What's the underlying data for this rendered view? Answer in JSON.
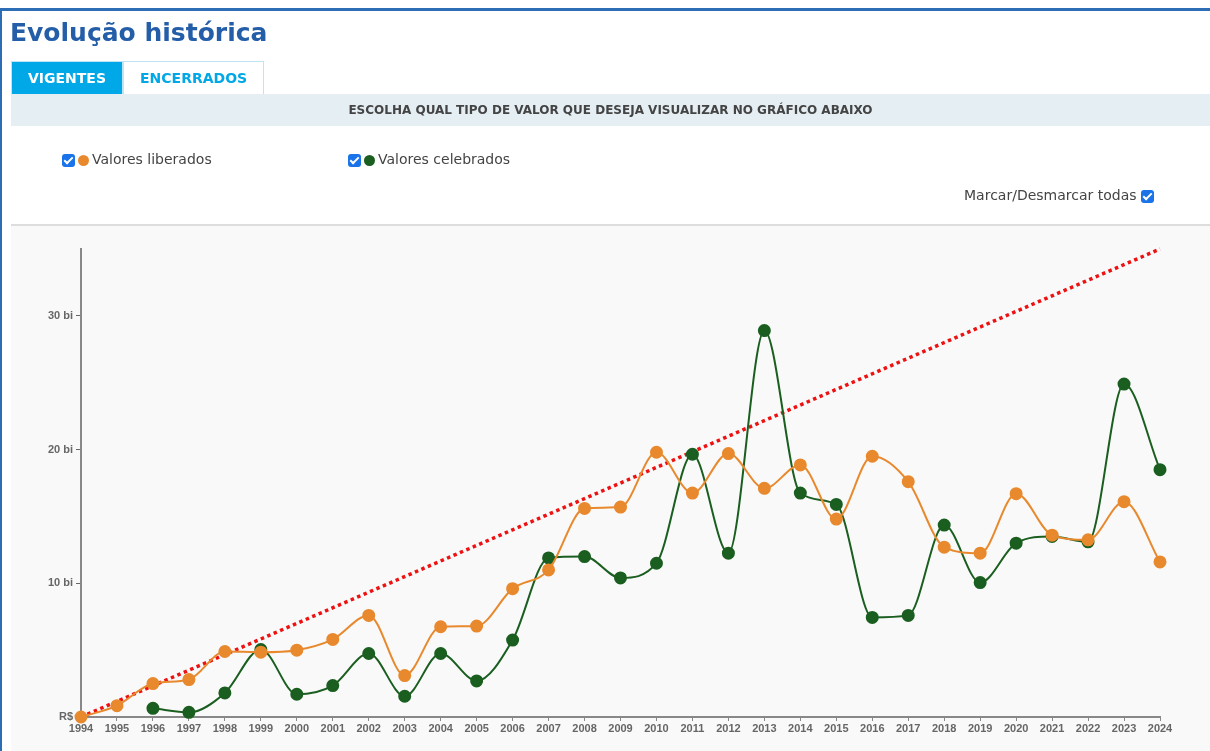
{
  "chart_data": {
    "type": "line",
    "title": "Evolução histórica",
    "subtitle": "ESCOLHA QUAL TIPO DE VALOR QUE DESEJA VISUALIZAR NO GRÁFICO ABAIXO",
    "annotations": [
      "VIGENTES",
      "ENCERRADOS",
      "Marcar/Desmarcar todas"
    ],
    "x": [
      1994,
      1995,
      1996,
      1997,
      1998,
      1999,
      2000,
      2001,
      2002,
      2003,
      2004,
      2005,
      2006,
      2007,
      2008,
      2009,
      2010,
      2011,
      2012,
      2013,
      2014,
      2015,
      2016,
      2017,
      2018,
      2019,
      2020,
      2021,
      2022,
      2023,
      2024
    ],
    "series": [
      {
        "name": "Valores liberados",
        "color": "#e8892e",
        "values": [
          0,
          0.85,
          2.5,
          2.8,
          4.9,
          4.85,
          5.0,
          5.8,
          7.6,
          3.1,
          6.75,
          6.8,
          9.6,
          11.0,
          15.6,
          15.7,
          19.8,
          16.75,
          19.7,
          17.1,
          18.85,
          14.8,
          19.5,
          17.6,
          12.7,
          12.25,
          16.7,
          13.6,
          13.25,
          16.1,
          11.6
        ]
      },
      {
        "name": "Valores celebrados",
        "color": "#1a5e20",
        "values": [
          null,
          null,
          0.65,
          0.35,
          1.8,
          5.05,
          1.7,
          2.35,
          4.75,
          1.55,
          4.75,
          2.7,
          5.75,
          11.9,
          12.0,
          10.4,
          11.5,
          19.65,
          12.25,
          28.9,
          16.75,
          15.9,
          7.45,
          7.6,
          14.35,
          10.05,
          13.0,
          13.5,
          13.1,
          24.9,
          18.5
        ]
      },
      {
        "type": "line",
        "color": "#ee1111",
        "x": [
          1994,
          2024
        ],
        "values": [
          0,
          35
        ],
        "line_style": "dotted",
        "marker": "none"
      }
    ],
    "xlim": [
      1994,
      2024
    ],
    "xticks": [
      1994,
      1995,
      1996,
      1997,
      1998,
      1999,
      2000,
      2001,
      2002,
      2003,
      2004,
      2005,
      2006,
      2007,
      2008,
      2009,
      2010,
      2011,
      2012,
      2013,
      2014,
      2015,
      2016,
      2017,
      2018,
      2019,
      2020,
      2021,
      2022,
      2023,
      2024
    ],
    "ylim": [
      0,
      35
    ],
    "yticks": [
      {
        "value": 0,
        "label": "R$"
      },
      {
        "value": 10,
        "label": "10 bi"
      },
      {
        "value": 20,
        "label": "20 bi"
      },
      {
        "value": 30,
        "label": "30 bi"
      }
    ],
    "grid": false,
    "legend": "top left",
    "marker": "circle",
    "line_style": "solid"
  }
}
